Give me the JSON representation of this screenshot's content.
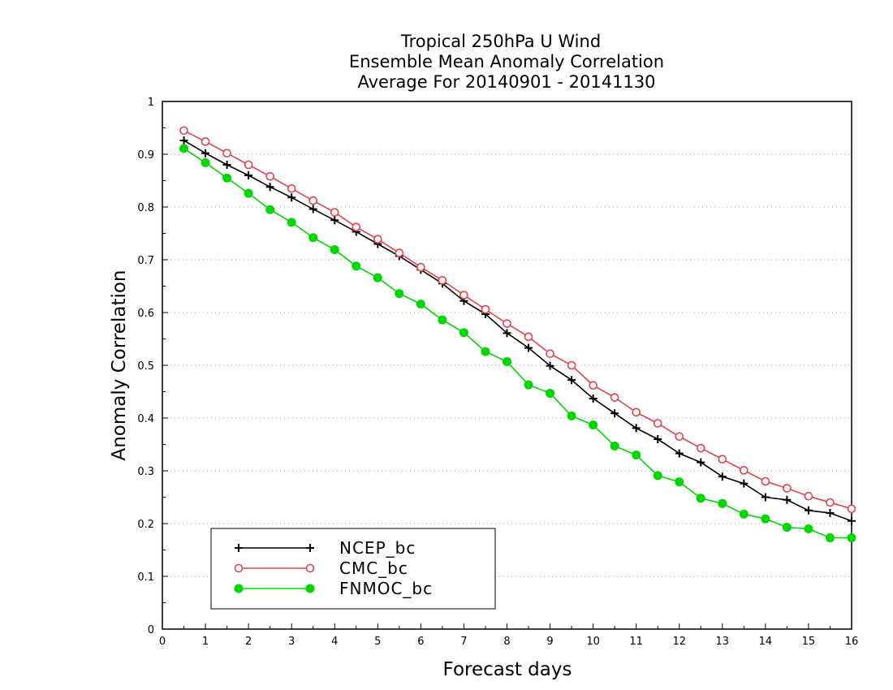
{
  "chart_data": {
    "type": "line",
    "title": [
      "Tropical 250hPa U Wind",
      "Ensemble Mean Anomaly Correlation",
      "Average For 20140901 - 20141130"
    ],
    "xlabel": "Forecast days",
    "ylabel": "Anomaly Correlation",
    "xlim": [
      0,
      16
    ],
    "ylim": [
      0,
      1
    ],
    "xticks": [
      0,
      1,
      2,
      3,
      4,
      5,
      6,
      7,
      8,
      9,
      10,
      11,
      12,
      13,
      14,
      15,
      16
    ],
    "yticks": [
      0,
      0.1,
      0.2,
      0.3,
      0.4,
      0.5,
      0.6,
      0.7,
      0.8,
      0.9,
      1
    ],
    "ytick_labels": [
      "0",
      "0.1",
      "0.2",
      "0.3",
      "0.4",
      "0.5",
      "0.6",
      "0.7",
      "0.8",
      "0.9",
      "1"
    ],
    "grid": "horizontal dotted",
    "legend_position": "bottom-left",
    "x": [
      0.5,
      1,
      1.5,
      2,
      2.5,
      3,
      3.5,
      4,
      4.5,
      5,
      5.5,
      6,
      6.5,
      7,
      7.5,
      8,
      8.5,
      9,
      9.5,
      10,
      10.5,
      11,
      11.5,
      12,
      12.5,
      13,
      13.5,
      14,
      14.5,
      15,
      15.5,
      16
    ],
    "series": [
      {
        "name": "NCEP_bc",
        "color": "#000000",
        "marker": "plus",
        "values": [
          0.926,
          0.902,
          0.88,
          0.86,
          0.838,
          0.818,
          0.796,
          0.775,
          0.753,
          0.73,
          0.707,
          0.681,
          0.655,
          0.622,
          0.597,
          0.561,
          0.533,
          0.499,
          0.472,
          0.437,
          0.409,
          0.381,
          0.36,
          0.333,
          0.316,
          0.289,
          0.276,
          0.25,
          0.245,
          0.225,
          0.22,
          0.205
        ]
      },
      {
        "name": "CMC_bc",
        "color": "#e0434a",
        "marker": "open-circle",
        "values": [
          0.945,
          0.924,
          0.902,
          0.88,
          0.858,
          0.835,
          0.812,
          0.79,
          0.762,
          0.739,
          0.713,
          0.686,
          0.661,
          0.633,
          0.606,
          0.579,
          0.554,
          0.522,
          0.5,
          0.462,
          0.439,
          0.411,
          0.39,
          0.365,
          0.343,
          0.322,
          0.301,
          0.28,
          0.267,
          0.252,
          0.24,
          0.228
        ]
      },
      {
        "name": "FNMOC_bc",
        "color": "#00d700",
        "marker": "filled-circle",
        "values": [
          0.911,
          0.884,
          0.855,
          0.826,
          0.795,
          0.771,
          0.742,
          0.719,
          0.688,
          0.666,
          0.636,
          0.616,
          0.586,
          0.562,
          0.526,
          0.507,
          0.463,
          0.447,
          0.404,
          0.387,
          0.347,
          0.33,
          0.291,
          0.279,
          0.248,
          0.238,
          0.218,
          0.209,
          0.193,
          0.19,
          0.173,
          0.173
        ]
      }
    ]
  }
}
